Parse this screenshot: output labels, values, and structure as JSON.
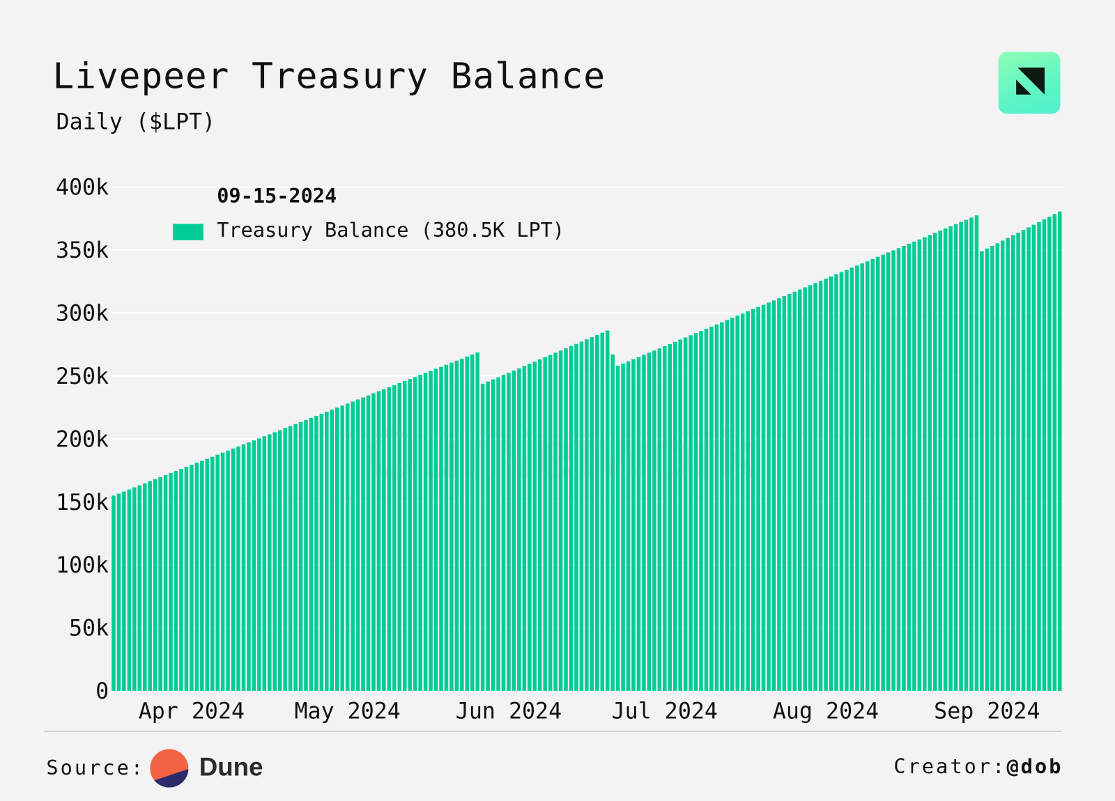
{
  "header": {
    "title": "Livepeer Treasury Balance",
    "subtitle": "Daily ($LPT)",
    "logo": "ournetwork-logo"
  },
  "legend": {
    "date": "09-15-2024",
    "label": "Treasury Balance (380.5K LPT)"
  },
  "watermark": "OurNetwork",
  "footer": {
    "source_label": "Source:",
    "source_name": "Dune",
    "creator_label": "Creator:",
    "creator_handle": "@dob"
  },
  "colors": {
    "bar": "#02cc95",
    "background": "#f3f3f3",
    "gridline": "#ffffff",
    "dune_orange": "#f26344",
    "dune_navy": "#2c2a6b"
  },
  "chart_data": {
    "type": "bar",
    "title": "Livepeer Treasury Balance",
    "subtitle": "Daily ($LPT)",
    "xlabel": "",
    "ylabel": "",
    "ylim": [
      0,
      400
    ],
    "yunit": "k",
    "grid": true,
    "legend_placement": "top-left",
    "yticks": [
      {
        "value": 0,
        "label": "0"
      },
      {
        "value": 50,
        "label": "50k"
      },
      {
        "value": 100,
        "label": "100k"
      },
      {
        "value": 150,
        "label": "150k"
      },
      {
        "value": 200,
        "label": "200k"
      },
      {
        "value": 250,
        "label": "250k"
      },
      {
        "value": 300,
        "label": "300k"
      },
      {
        "value": 350,
        "label": "350k"
      },
      {
        "value": 400,
        "label": "400k"
      }
    ],
    "xticks": [
      {
        "date": "2024-04-01",
        "label": "Apr 2024"
      },
      {
        "date": "2024-05-01",
        "label": "May 2024"
      },
      {
        "date": "2024-06-01",
        "label": "Jun 2024"
      },
      {
        "date": "2024-07-01",
        "label": "Jul 2024"
      },
      {
        "date": "2024-08-01",
        "label": "Aug 2024"
      },
      {
        "date": "2024-09-01",
        "label": "Sep 2024"
      }
    ],
    "series": [
      {
        "name": "Treasury Balance",
        "x": [
          "2024-03-17",
          "2024-03-18",
          "2024-03-19",
          "2024-03-20",
          "2024-03-21",
          "2024-03-22",
          "2024-03-23",
          "2024-03-24",
          "2024-03-25",
          "2024-03-26",
          "2024-03-27",
          "2024-03-28",
          "2024-03-29",
          "2024-03-30",
          "2024-03-31",
          "2024-04-01",
          "2024-04-02",
          "2024-04-03",
          "2024-04-04",
          "2024-04-05",
          "2024-04-06",
          "2024-04-07",
          "2024-04-08",
          "2024-04-09",
          "2024-04-10",
          "2024-04-11",
          "2024-04-12",
          "2024-04-13",
          "2024-04-14",
          "2024-04-15",
          "2024-04-16",
          "2024-04-17",
          "2024-04-18",
          "2024-04-19",
          "2024-04-20",
          "2024-04-21",
          "2024-04-22",
          "2024-04-23",
          "2024-04-24",
          "2024-04-25",
          "2024-04-26",
          "2024-04-27",
          "2024-04-28",
          "2024-04-29",
          "2024-04-30",
          "2024-05-01",
          "2024-05-02",
          "2024-05-03",
          "2024-05-04",
          "2024-05-05",
          "2024-05-06",
          "2024-05-07",
          "2024-05-08",
          "2024-05-09",
          "2024-05-10",
          "2024-05-11",
          "2024-05-12",
          "2024-05-13",
          "2024-05-14",
          "2024-05-15",
          "2024-05-16",
          "2024-05-17",
          "2024-05-18",
          "2024-05-19",
          "2024-05-20",
          "2024-05-21",
          "2024-05-22",
          "2024-05-23",
          "2024-05-24",
          "2024-05-25",
          "2024-05-26",
          "2024-05-27",
          "2024-05-28",
          "2024-05-29",
          "2024-05-30",
          "2024-05-31",
          "2024-06-01",
          "2024-06-02",
          "2024-06-03",
          "2024-06-04",
          "2024-06-05",
          "2024-06-06",
          "2024-06-07",
          "2024-06-08",
          "2024-06-09",
          "2024-06-10",
          "2024-06-11",
          "2024-06-12",
          "2024-06-13",
          "2024-06-14",
          "2024-06-15",
          "2024-06-16",
          "2024-06-17",
          "2024-06-18",
          "2024-06-19",
          "2024-06-20",
          "2024-06-21",
          "2024-06-22",
          "2024-06-23",
          "2024-06-24",
          "2024-06-25",
          "2024-06-26",
          "2024-06-27",
          "2024-06-28",
          "2024-06-29",
          "2024-06-30",
          "2024-07-01",
          "2024-07-02",
          "2024-07-03",
          "2024-07-04",
          "2024-07-05",
          "2024-07-06",
          "2024-07-07",
          "2024-07-08",
          "2024-07-09",
          "2024-07-10",
          "2024-07-11",
          "2024-07-12",
          "2024-07-13",
          "2024-07-14",
          "2024-07-15",
          "2024-07-16",
          "2024-07-17",
          "2024-07-18",
          "2024-07-19",
          "2024-07-20",
          "2024-07-21",
          "2024-07-22",
          "2024-07-23",
          "2024-07-24",
          "2024-07-25",
          "2024-07-26",
          "2024-07-27",
          "2024-07-28",
          "2024-07-29",
          "2024-07-30",
          "2024-07-31",
          "2024-08-01",
          "2024-08-02",
          "2024-08-03",
          "2024-08-04",
          "2024-08-05",
          "2024-08-06",
          "2024-08-07",
          "2024-08-08",
          "2024-08-09",
          "2024-08-10",
          "2024-08-11",
          "2024-08-12",
          "2024-08-13",
          "2024-08-14",
          "2024-08-15",
          "2024-08-16",
          "2024-08-17",
          "2024-08-18",
          "2024-08-19",
          "2024-08-20",
          "2024-08-21",
          "2024-08-22",
          "2024-08-23",
          "2024-08-24",
          "2024-08-25",
          "2024-08-26",
          "2024-08-27",
          "2024-08-28",
          "2024-08-29",
          "2024-08-30",
          "2024-08-31",
          "2024-09-01",
          "2024-09-02",
          "2024-09-03",
          "2024-09-04",
          "2024-09-05",
          "2024-09-06",
          "2024-09-07",
          "2024-09-08",
          "2024-09-09",
          "2024-09-10",
          "2024-09-11",
          "2024-09-12",
          "2024-09-13",
          "2024-09-14",
          "2024-09-15"
        ],
        "values": [
          155.0,
          156.6,
          158.2,
          159.9,
          161.5,
          163.1,
          164.7,
          166.4,
          168.0,
          169.6,
          171.2,
          172.9,
          174.5,
          176.1,
          177.7,
          179.3,
          181.0,
          182.6,
          184.2,
          185.8,
          187.5,
          189.1,
          190.7,
          192.3,
          194.0,
          195.6,
          197.2,
          198.8,
          200.4,
          202.1,
          203.7,
          205.3,
          206.9,
          208.6,
          210.2,
          211.8,
          213.4,
          215.1,
          216.7,
          218.3,
          219.9,
          221.5,
          223.2,
          224.8,
          226.4,
          228.0,
          229.7,
          231.3,
          232.9,
          234.5,
          236.2,
          237.8,
          239.4,
          241.0,
          242.6,
          244.3,
          245.9,
          247.5,
          249.1,
          250.8,
          252.4,
          254.0,
          255.6,
          257.2,
          258.9,
          260.5,
          262.1,
          263.7,
          265.4,
          267.0,
          268.6,
          243.7,
          245.5,
          247.2,
          249.0,
          250.8,
          252.5,
          254.3,
          256.0,
          257.8,
          259.6,
          261.3,
          263.1,
          264.9,
          266.6,
          268.4,
          270.1,
          271.9,
          273.7,
          275.4,
          277.2,
          279.0,
          280.7,
          282.5,
          284.2,
          286.0,
          267.0,
          258.0,
          259.7,
          261.5,
          263.2,
          264.9,
          266.7,
          268.4,
          270.1,
          271.8,
          273.6,
          275.3,
          277.0,
          278.8,
          280.5,
          282.2,
          284.0,
          285.7,
          287.4,
          289.1,
          290.9,
          292.6,
          294.3,
          296.1,
          297.8,
          299.5,
          301.3,
          303.0,
          304.7,
          306.4,
          308.2,
          309.9,
          311.6,
          313.4,
          315.1,
          316.8,
          318.6,
          320.3,
          322.0,
          323.7,
          325.5,
          327.2,
          328.9,
          330.7,
          332.4,
          334.1,
          335.9,
          337.6,
          339.3,
          341.0,
          342.8,
          344.5,
          346.2,
          348.0,
          349.7,
          351.4,
          353.2,
          354.9,
          356.6,
          358.3,
          360.1,
          361.8,
          363.5,
          365.3,
          367.0,
          368.7,
          370.5,
          372.2,
          373.9,
          375.6,
          377.4,
          349.0,
          351.1,
          353.2,
          355.3,
          357.4,
          359.5,
          361.6,
          363.7,
          365.8,
          367.9,
          370.0,
          372.1,
          374.2,
          376.3,
          378.4,
          380.5
        ]
      }
    ]
  }
}
